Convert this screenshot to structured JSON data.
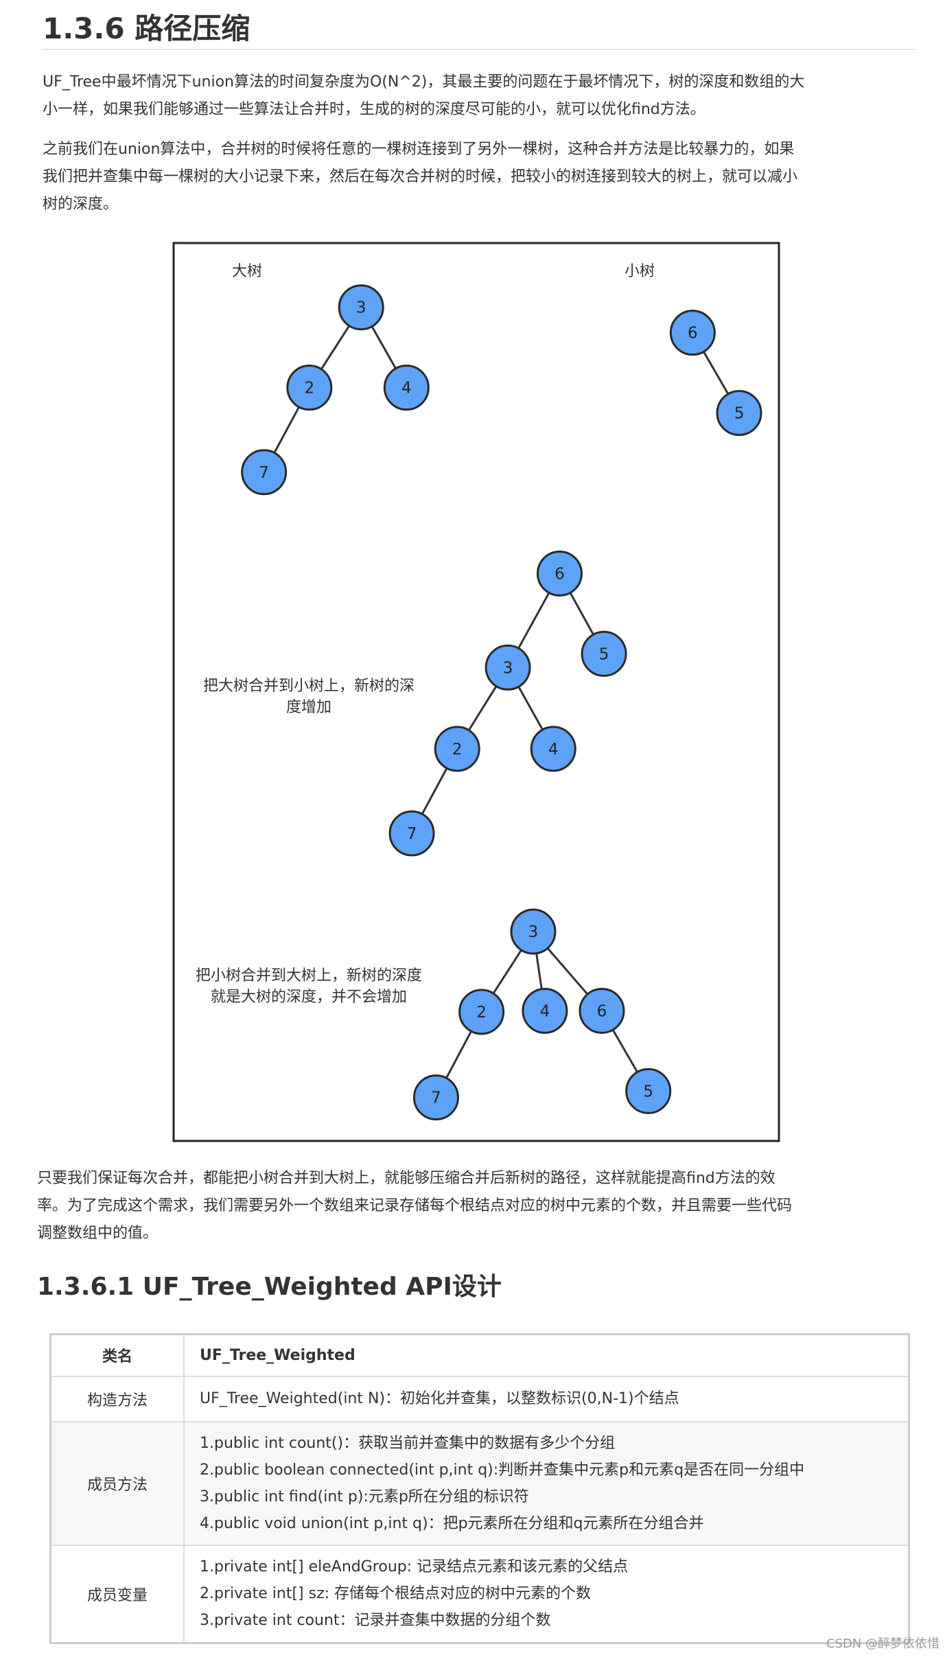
{
  "heading": "1.3.6 路径压缩",
  "paragraphs": [
    [
      "UF_Tree中最坏情况下union算法的时间复杂度为O(N^2)，其最主要的问题在于最坏情况下，树的深度和数组的大",
      "小一样，如果我们能够通过一些算法让合并时，生成的树的深度尽可能的小，就可以优化find方法。"
    ],
    [
      "之前我们在union算法中，合并树的时候将任意的一棵树连接到了另外一棵树，这种合并方法是比较暴力的，如果",
      "我们把并查集中每一棵树的大小记录下来，然后在每次合并树的时候，把较小的树连接到较大的树上，就可以减小",
      "树的深度。"
    ]
  ],
  "diagram": {
    "big_label": "大树",
    "small_label": "小树",
    "caption1": [
      "把大树合并到小树上，新树的深",
      "度增加"
    ],
    "caption2": [
      "把小树合并到大树上，新树的深度",
      "就是大树的深度，并不会增加"
    ],
    "trees": [
      {
        "nodes": [
          "3",
          "2",
          "4",
          "7"
        ]
      },
      {
        "nodes": [
          "6",
          "5"
        ]
      },
      {
        "nodes": [
          "6",
          "3",
          "5",
          "2",
          "4",
          "7"
        ]
      },
      {
        "nodes": [
          "3",
          "2",
          "4",
          "6",
          "7",
          "5"
        ]
      }
    ]
  },
  "closing": [
    "只要我们保证每次合并，都能把小树合并到大树上，就能够压缩合并后新树的路径，这样就能提高find方法的效",
    "率。为了完成这个需求，我们需要另外一个数组来记录存储每个根结点对应的树中元素的个数，并且需要一些代码",
    "调整数组中的值。"
  ],
  "subheading": "1.3.6.1 UF_Tree_Weighted API设计",
  "table": {
    "rows": [
      [
        "类名",
        [
          "UF_Tree_Weighted"
        ]
      ],
      [
        "构造方法",
        [
          "UF_Tree_Weighted(int N)：初始化并查集，以整数标识(0,N-1)个结点"
        ]
      ],
      [
        "成员方法",
        [
          "1.public int count()：获取当前并查集中的数据有多少个分组",
          "2.public boolean connected(int p,int q):判断并查集中元素p和元素q是否在同一分组中",
          "3.public int find(int p):元素p所在分组的标识符",
          "4.public void union(int p,int q)：把p元素所在分组和q元素所在分组合并"
        ]
      ],
      [
        "成员变量",
        [
          "1.private int[]  eleAndGroup: 记录结点元素和该元素的父结点",
          "2.private int[] sz: 存储每个根结点对应的树中元素的个数",
          "3.private int count：记录并查集中数据的分组个数"
        ]
      ]
    ]
  },
  "footer": "CSDN @醉梦依依惜"
}
